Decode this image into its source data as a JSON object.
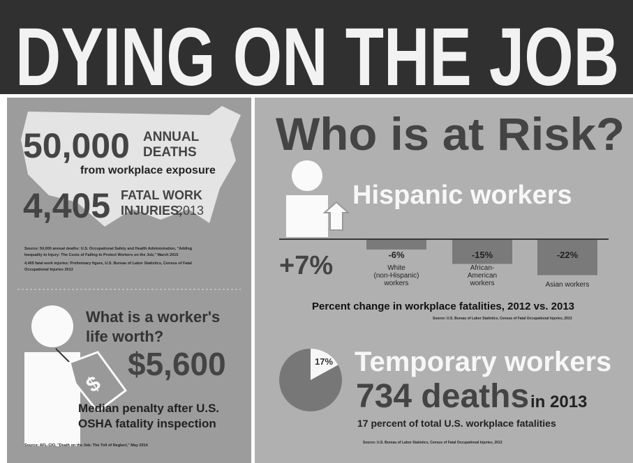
{
  "header": {
    "title": "DYING ON THE JOB"
  },
  "left": {
    "stat1": {
      "number": "50,000",
      "label_lines": [
        "ANNUAL",
        "DEATHS"
      ],
      "sub": "from workplace exposure"
    },
    "stat2": {
      "number": "4,405",
      "label_lines": [
        "FATAL WORK",
        "INJURIES,"
      ],
      "year": "2013"
    },
    "sources": [
      "Source: 50,000 annual deaths: U.S. Occupational Safety and Health Administration, \"Adding",
      "Inequality to Injury: The Costs of Failing to Protect Workers on the Job,\" March 2015",
      "4,405 fatal work injuries: Preliminary figure, U.S. Bureau of Labor Statistics, Census of Fatal",
      "Occupational Injuries 2013"
    ],
    "worth": {
      "question_lines": [
        "What is a worker's",
        "life worth?"
      ],
      "amount": "$5,600",
      "caption_lines": [
        "Median penalty after U.S.",
        "OSHA fatality inspection"
      ],
      "source": "Source: AFL-CIO, \"Death on the Job: The Toll of Neglect,\" May 2014"
    }
  },
  "right": {
    "heading": "Who is at Risk?",
    "hispanic": {
      "name": "Hispanic workers",
      "change": "+7%"
    },
    "groups": [
      {
        "label_lines": [
          "White",
          "(non-Hispanic)",
          "workers"
        ],
        "value": -6,
        "value_label": "-6%"
      },
      {
        "label_lines": [
          "African-",
          "American",
          "workers"
        ],
        "value": -15,
        "value_label": "-15%"
      },
      {
        "label_lines": [
          "Asian workers"
        ],
        "value": -22,
        "value_label": "-22%"
      }
    ],
    "caption": "Percent change in workplace fatalities, 2012 vs. 2013",
    "caption_source": "Source: U.S. Bureau of Labor Statistics, Census of Fatal Occupational Injuries, 2013",
    "temp": {
      "pie_value": 17,
      "pie_label": "17%",
      "title": "Temporary workers",
      "deaths": "734 deaths",
      "year": "in 2013",
      "caption": "17 percent of total U.S. workplace fatalities",
      "source": "Source: U.S. Bureau of Labor Statistics, Census of Fatal Occupational Injuries, 2013"
    }
  }
}
